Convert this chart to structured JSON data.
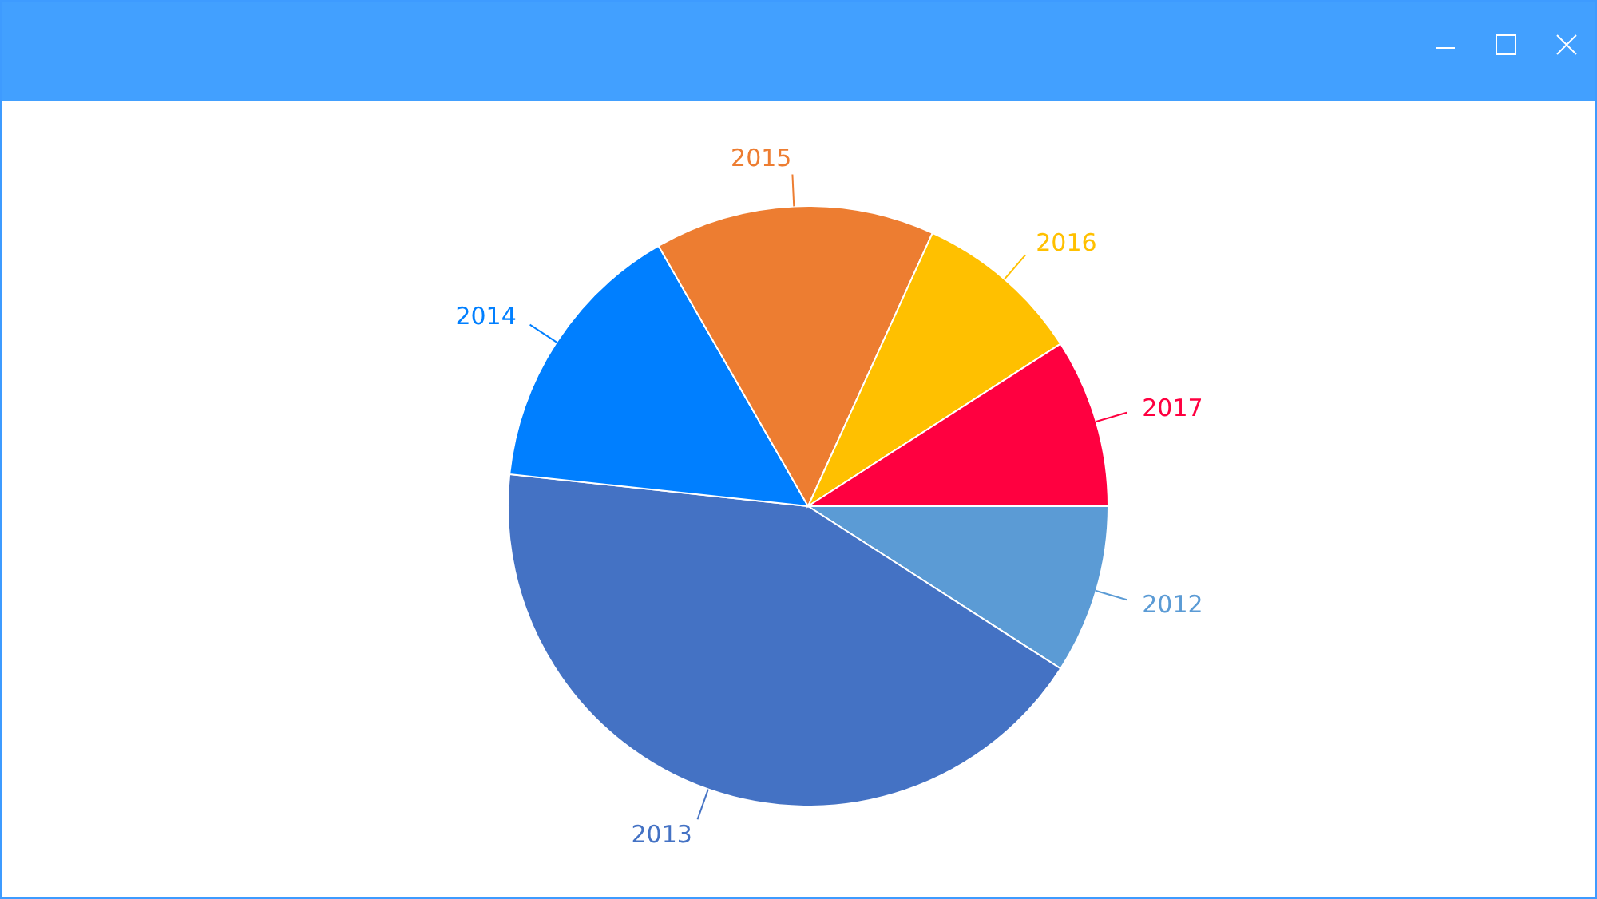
{
  "chart_data": {
    "type": "pie",
    "categories": [
      "2012",
      "2013",
      "2014",
      "2015",
      "2016",
      "2017"
    ],
    "values": [
      9.1,
      42.6,
      15,
      15.1,
      9.1,
      9.1
    ],
    "colors": [
      "#5b9bd5",
      "#4472c4",
      "#007fff",
      "#ed7d31",
      "#ffc000",
      "#ff0040"
    ],
    "legend": false
  }
}
